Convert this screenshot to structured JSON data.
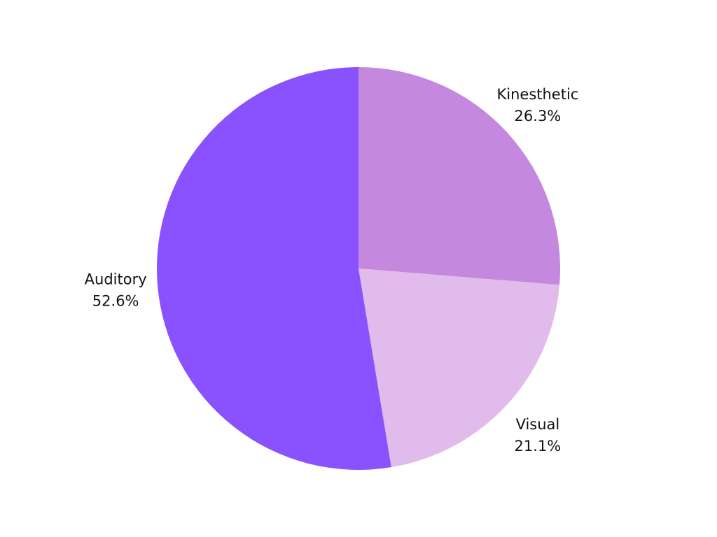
{
  "chart_data": {
    "type": "pie",
    "title": "",
    "slices": [
      {
        "label": "Kinesthetic",
        "value": 26.3,
        "value_label": "26.3%",
        "color": "#c588df"
      },
      {
        "label": "Visual",
        "value": 21.1,
        "value_label": "21.1%",
        "color": "#e0bbec"
      },
      {
        "label": "Auditory",
        "value": 52.6,
        "value_label": "52.6%",
        "color": "#8a51fe"
      }
    ],
    "start_angle": "12 o'clock",
    "direction": "clockwise",
    "legend": "none",
    "labels": "outside"
  }
}
